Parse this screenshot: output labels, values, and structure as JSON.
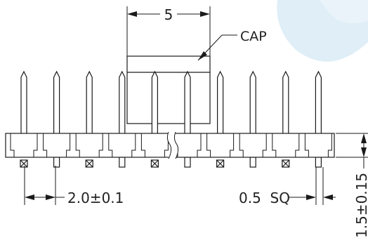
{
  "drawing": {
    "dim_top": "5",
    "cap_label": "CAP",
    "dim_pitch": "2.0±0.1",
    "dim_pin": "0.5  SQ",
    "dim_height": "1.5±0.15"
  },
  "colors": {
    "line": "#1a1a1a",
    "watermark": "#dcecf6"
  }
}
